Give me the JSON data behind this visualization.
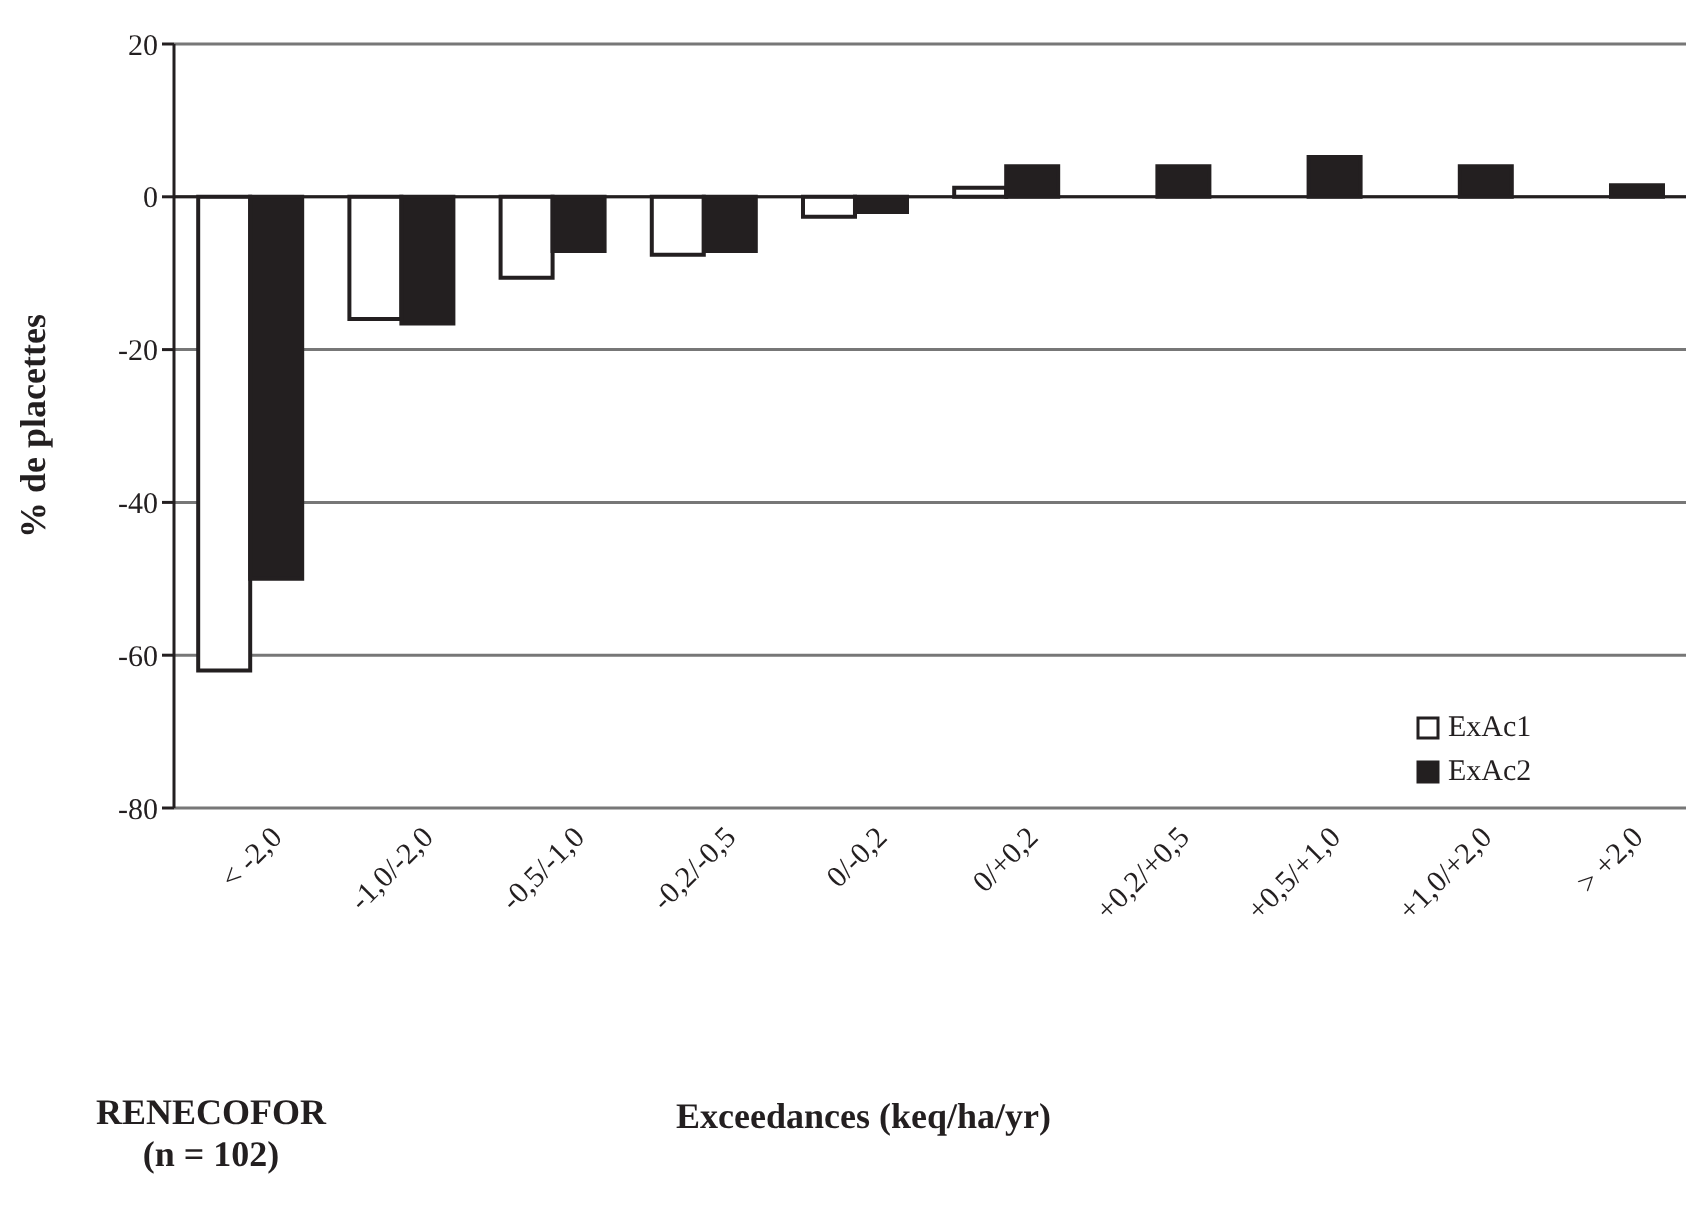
{
  "chart_data": {
    "type": "bar",
    "xlabel": "Exceedances (keq/ha/yr)",
    "ylabel": "% de placettes",
    "categories": [
      "< -2,0",
      "-1,0/-2,0",
      "-0,5/-1,0",
      "-0,2/-0,5",
      "0/-0,2",
      "0/+0,2",
      "+0,2/+0,5",
      "+0,5/+1,0",
      "+1,0/+2,0",
      "> +2,0"
    ],
    "series": [
      {
        "name": "ExAc1",
        "color": "#ffffff",
        "values": [
          -62,
          -16,
          -10.6,
          -7.6,
          -2.6,
          1.2,
          0,
          0,
          0,
          0
        ]
      },
      {
        "name": "ExAc2",
        "color": "#231f20",
        "values": [
          -50,
          -16.6,
          -7.1,
          -7.1,
          -2,
          4,
          4,
          5.2,
          4,
          1.5
        ]
      }
    ],
    "ylim": [
      -80,
      20
    ],
    "yticks": [
      -80,
      -60,
      -40,
      -20,
      0,
      20
    ],
    "grid": "y",
    "legend": "bottom right",
    "annotations": [
      "RENECOFOR\n(n = 102)"
    ]
  }
}
